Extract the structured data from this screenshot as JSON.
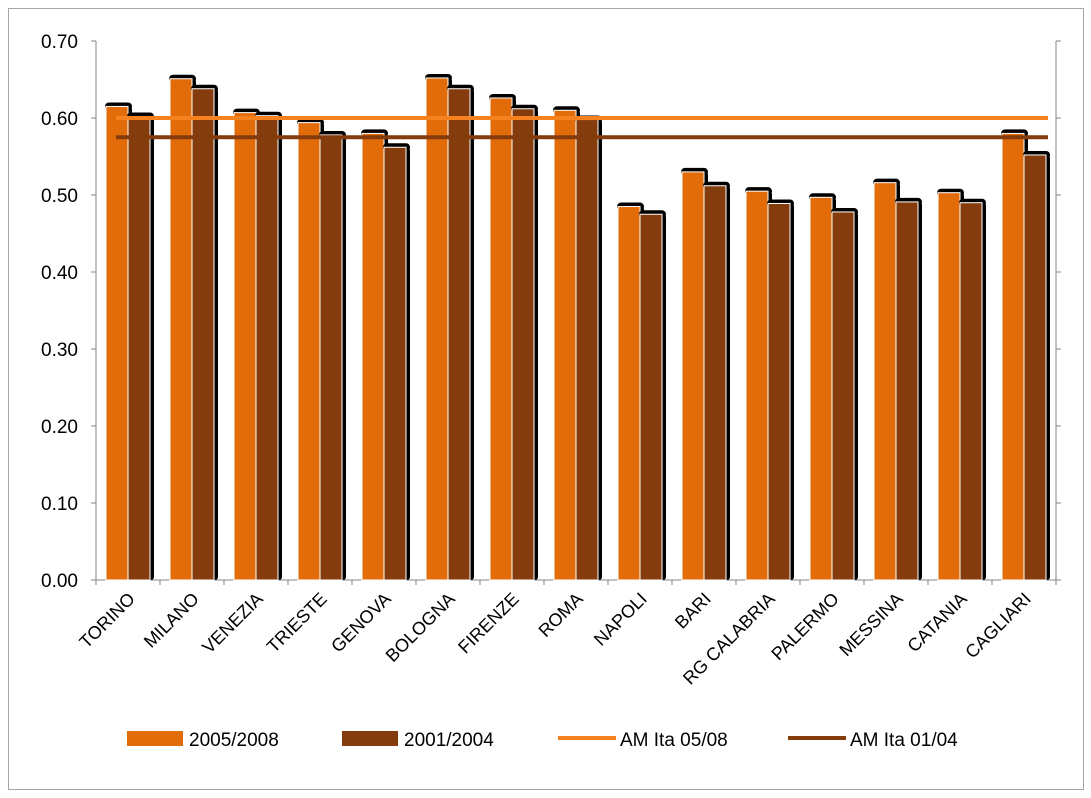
{
  "chart_data": {
    "type": "bar",
    "categories": [
      "TORINO",
      "MILANO",
      "VENEZIA",
      "TRIESTE",
      "GENOVA",
      "BOLOGNA",
      "FIRENZE",
      "ROMA",
      "NAPOLI",
      "BARI",
      "RG CALABRIA",
      "PALERMO",
      "MESSINA",
      "CATANIA",
      "CAGLIARI"
    ],
    "series": [
      {
        "name": "2005/2008",
        "color": "#e36c0a",
        "values": [
          0.615,
          0.651,
          0.607,
          0.594,
          0.58,
          0.652,
          0.626,
          0.61,
          0.485,
          0.53,
          0.505,
          0.497,
          0.516,
          0.503,
          0.58
        ]
      },
      {
        "name": "2001/2004",
        "color": "#843c0c",
        "values": [
          0.602,
          0.638,
          0.603,
          0.578,
          0.562,
          0.638,
          0.612,
          0.598,
          0.475,
          0.512,
          0.489,
          0.478,
          0.491,
          0.49,
          0.552
        ]
      }
    ],
    "reference_lines": [
      {
        "name": "AM Ita 05/08",
        "color": "#f5821f",
        "value": 0.6
      },
      {
        "name": "AM Ita 01/04",
        "color": "#843c0c",
        "value": 0.575
      }
    ],
    "y_ticks": [
      "0.00",
      "0.10",
      "0.20",
      "0.30",
      "0.40",
      "0.50",
      "0.60",
      "0.70"
    ],
    "ylim": [
      0,
      0.7
    ],
    "grid": false,
    "legend_position": "bottom"
  }
}
